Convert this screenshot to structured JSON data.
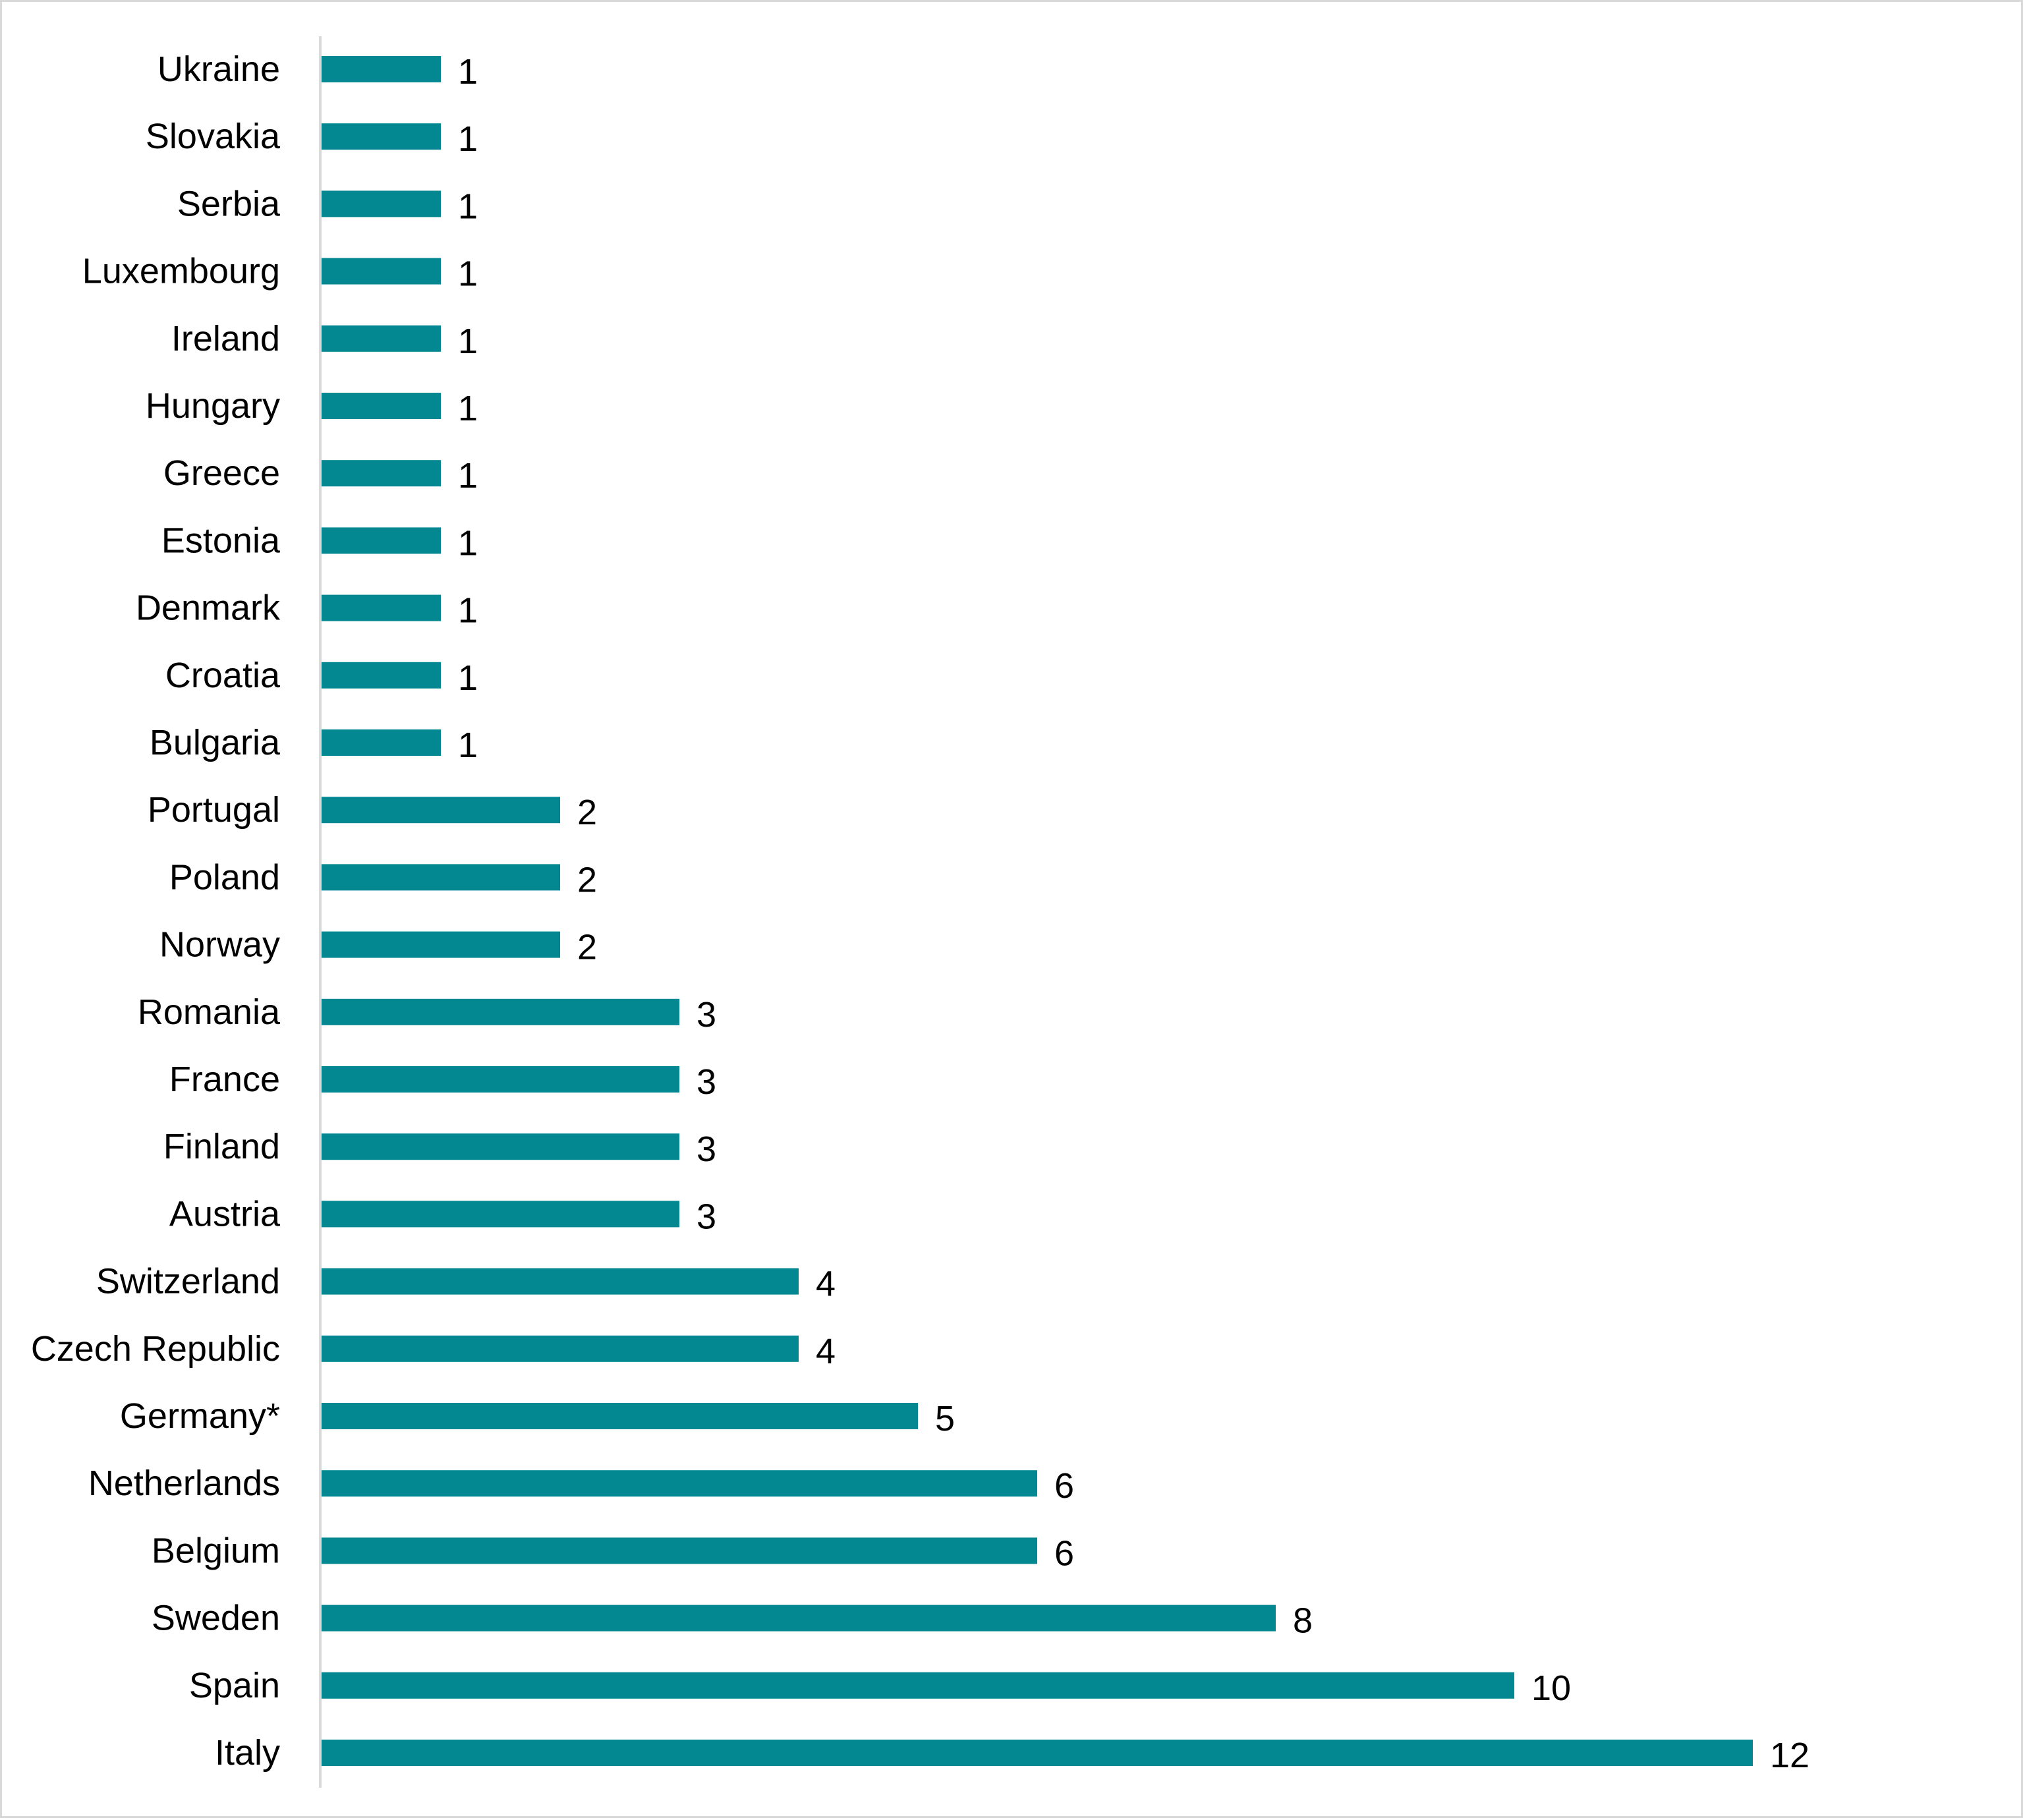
{
  "chart_data": {
    "type": "bar",
    "orientation": "horizontal",
    "title": "",
    "xlabel": "",
    "ylabel": "",
    "xlim": [
      0,
      12
    ],
    "grid": false,
    "legend": "none",
    "bar_color": "#038791",
    "categories": [
      "Ukraine",
      "Slovakia",
      "Serbia",
      "Luxembourg",
      "Ireland",
      "Hungary",
      "Greece",
      "Estonia",
      "Denmark",
      "Croatia",
      "Bulgaria",
      "Portugal",
      "Poland",
      "Norway",
      "Romania",
      "France",
      "Finland",
      "Austria",
      "Switzerland",
      "Czech Republic",
      "Germany*",
      "Netherlands",
      "Belgium",
      "Sweden",
      "Spain",
      "Italy"
    ],
    "values": [
      1,
      1,
      1,
      1,
      1,
      1,
      1,
      1,
      1,
      1,
      1,
      2,
      2,
      2,
      3,
      3,
      3,
      3,
      4,
      4,
      5,
      6,
      6,
      8,
      10,
      12
    ],
    "data_labels": [
      "1",
      "1",
      "1",
      "1",
      "1",
      "1",
      "1",
      "1",
      "1",
      "1",
      "1",
      "2",
      "2",
      "2",
      "3",
      "3",
      "3",
      "3",
      "4",
      "4",
      "5",
      "6",
      "6",
      "8",
      "10",
      "12"
    ]
  }
}
